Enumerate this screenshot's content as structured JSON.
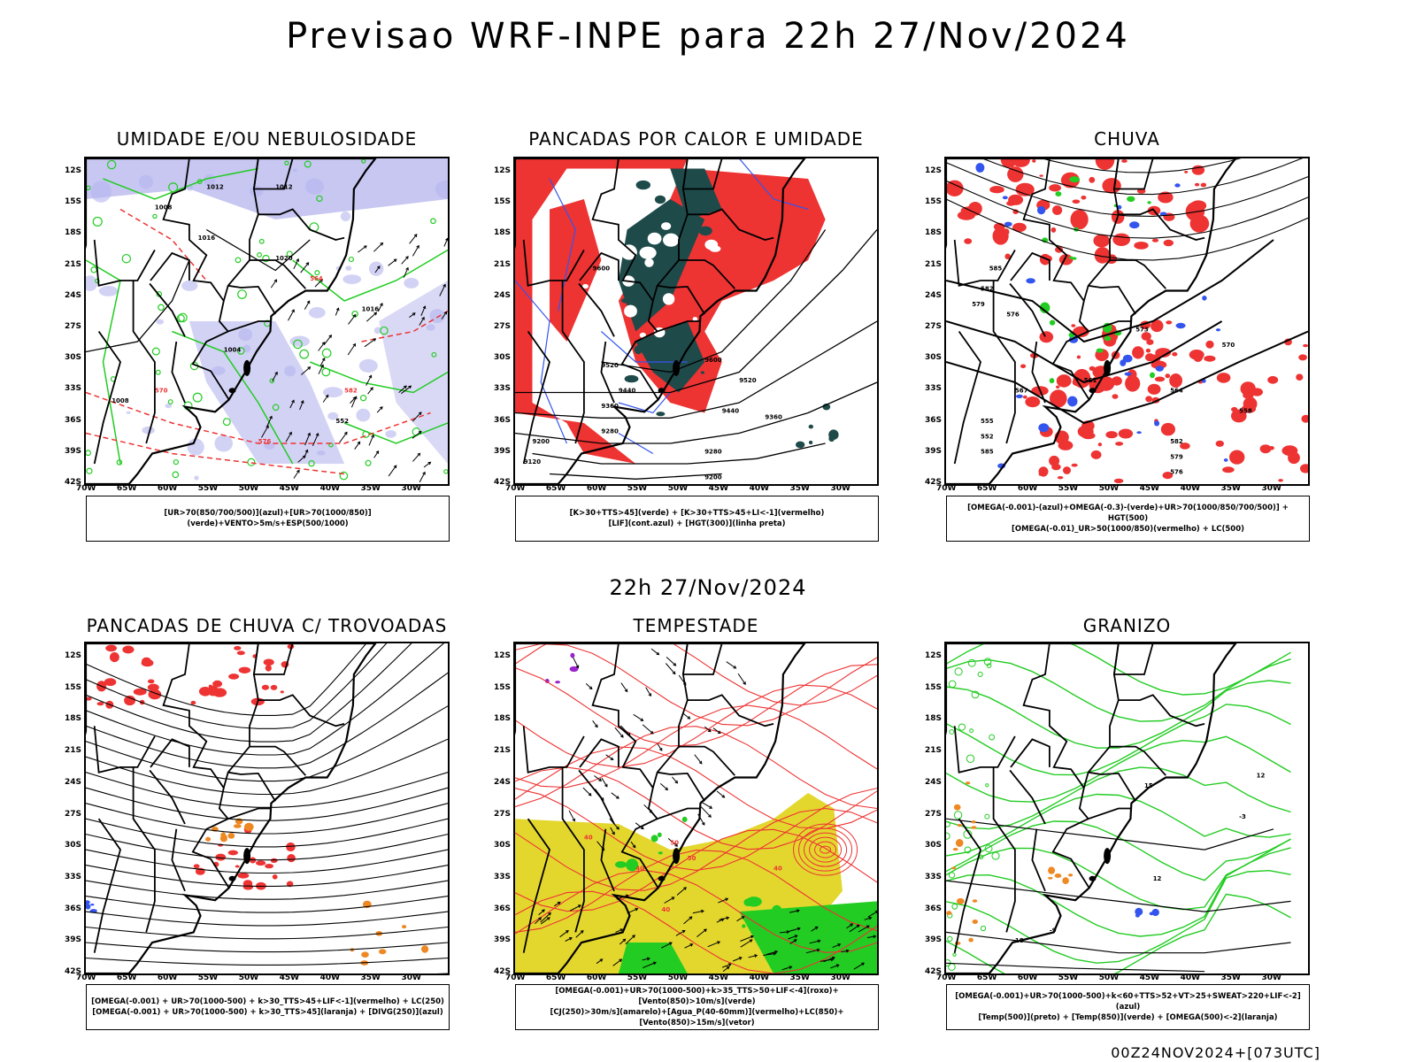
{
  "header": {
    "title": "Previsao WRF-INPE  para 22h 27/Nov/2024",
    "mid_time": "22h 27/Nov/2024",
    "footer": "00Z24NOV2024+[073UTC]"
  },
  "axes": {
    "lat_labels": [
      "12S",
      "15S",
      "18S",
      "21S",
      "24S",
      "27S",
      "30S",
      "33S",
      "36S",
      "39S",
      "42S"
    ],
    "lon_labels": [
      "70W",
      "65W",
      "60W",
      "55W",
      "50W",
      "45W",
      "40W",
      "35W",
      "30W"
    ]
  },
  "panels": [
    {
      "title": "UMIDADE E/OU NEBULOSIDADE",
      "legend": [
        "[UR>70(850/700/500)](azul)+[UR>70(1000/850)](verde)+VENTO>5m/s+ESP(500/1000)"
      ],
      "contour_labels": [
        "1012",
        "1008",
        "1016",
        "1020",
        "1004",
        "1008",
        "576",
        "564",
        "570",
        "582",
        "552",
        "1012",
        "1016"
      ]
    },
    {
      "title": "PANCADAS POR CALOR E UMIDADE",
      "legend": [
        "[K>30+TTS>45](verde)  +  [K>30+TTS>45+LI<-1](vermelho)",
        "[LIF](cont.azul)  +  [HGT(300)](linha preta)"
      ],
      "contour_labels": [
        "9600",
        "9520",
        "9440",
        "9360",
        "9280",
        "9200",
        "9120",
        "9600",
        "9520",
        "9440",
        "9360",
        "9280",
        "9200"
      ]
    },
    {
      "title": "CHUVA",
      "legend": [
        "[OMEGA(-0.001)-(azul)+OMEGA(-0.3)-(verde)+UR>70(1000/850/700/500)]  +  HGT(500)",
        "[OMEGA(-0.01)_UR>50(1000/850)(vermelho)  +  LC(500)"
      ],
      "contour_labels": [
        "585",
        "582",
        "579",
        "576",
        "573",
        "570",
        "567",
        "564",
        "561",
        "558",
        "555",
        "552"
      ]
    },
    {
      "title": "PANCADAS DE CHUVA C/ TROVOADAS",
      "legend": [
        "[OMEGA(-0.001)  +  UR>70(1000-500)  +  k>30_TTS>45+LIF<-1](vermelho)  +  LC(250)",
        "[OMEGA(-0.001)  +  UR>70(1000-500)  +  k>30_TTS>45](laranja)  +  [DIVG(250)](azul)"
      ],
      "contour_labels": []
    },
    {
      "title": "TEMPESTADE",
      "legend": [
        "[OMEGA(-0.001)+UR>70(1000-500)+k>35_TTS>50+LIF<-4](roxo)+[Vento(850)>10m/s](verde)",
        "[CJ(250)>30m/s](amarelo)+[Agua_P(40-60mm)](vermelho)+LC(850)+[Vento(850)>15m/s](vetor)"
      ],
      "contour_labels": [
        "40",
        "40",
        "50",
        "50",
        "40",
        "40"
      ]
    },
    {
      "title": "GRANIZO",
      "legend": [
        "[OMEGA(-0.001)+UR>70(1000-500)+k<60+TTS>52+VT>25+SWEAT>220+LIF<-2](azul)",
        "[Temp(500)](preto)  +  [Temp(850)](verde)  +  [OMEGA(500)<-2](laranja)"
      ],
      "contour_labels": [
        "-3",
        "12",
        "18",
        "15",
        "-9",
        "12"
      ]
    }
  ],
  "colors": {
    "red": "#ee3333",
    "green": "#22cc22",
    "blue": "#3355ee",
    "lavender": "#b4b4ee",
    "dark": "#1f4a4a",
    "yellow": "#e3d72e",
    "orange": "#ee8822",
    "purple": "#9922cc"
  }
}
